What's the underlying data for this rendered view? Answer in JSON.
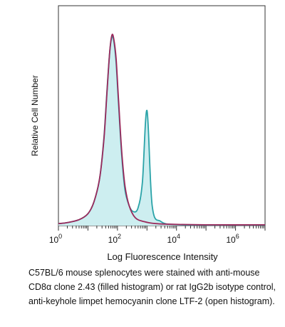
{
  "chart_data": {
    "type": "area",
    "xlabel": "Log Fluorescence Intensity",
    "ylabel": "Relative Cell Number",
    "x_scale": "log",
    "xlim": [
      1,
      10000000
    ],
    "ylim": [
      0,
      100
    ],
    "x_ticks": [
      {
        "value": 1,
        "base": "10",
        "exp": "0"
      },
      {
        "value": 100,
        "base": "10",
        "exp": "2"
      },
      {
        "value": 10000,
        "base": "10",
        "exp": "4"
      },
      {
        "value": 1000000,
        "base": "10",
        "exp": "6"
      }
    ],
    "series": [
      {
        "style": "filled",
        "color": "#2aa3a8",
        "fill": "#cdeef0",
        "x": [
          1,
          2,
          5,
          10,
          16,
          25,
          35,
          45,
          55,
          65,
          75,
          90,
          110,
          140,
          180,
          250,
          350,
          500,
          700,
          1000,
          1500,
          3000,
          10000,
          100000,
          10000000
        ],
        "y": [
          1,
          1.5,
          3,
          6,
          12,
          24,
          45,
          70,
          88,
          95,
          93,
          82,
          60,
          35,
          18,
          10,
          7,
          9,
          22,
          58,
          10,
          2,
          0.5,
          0.3,
          0.3
        ]
      },
      {
        "style": "open",
        "color": "#9b2a5c",
        "x": [
          1,
          2,
          5,
          10,
          16,
          25,
          35,
          45,
          55,
          65,
          75,
          90,
          110,
          140,
          180,
          250,
          400,
          800,
          2000,
          10000,
          100000,
          10000000
        ],
        "y": [
          1,
          1.5,
          3,
          6,
          12,
          24,
          44,
          69,
          88,
          96,
          94,
          84,
          62,
          37,
          20,
          10,
          4,
          2,
          1,
          0.6,
          0.4,
          0.4
        ]
      }
    ]
  },
  "caption": "C57BL/6 mouse splenocytes were stained with anti-mouse CD8α clone 2.43 (filled histogram) or rat IgG2b isotype control, anti-keyhole limpet hemocyanin clone LTF-2 (open histogram)."
}
